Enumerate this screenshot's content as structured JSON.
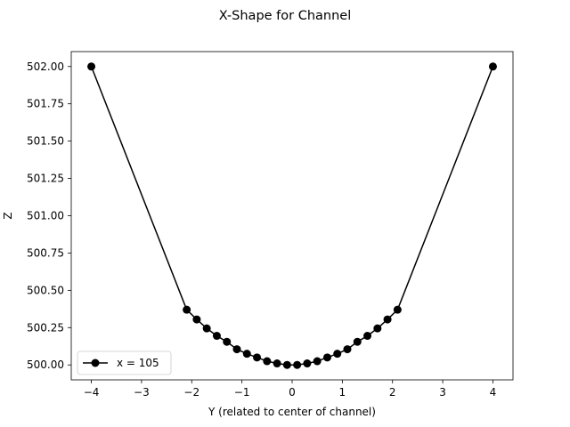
{
  "chart_data": {
    "type": "line",
    "title": "X-Shape for Channel",
    "xlabel": "Y (related to center of channel)",
    "ylabel": "Z",
    "xlim": [
      -4.4,
      4.4
    ],
    "ylim": [
      499.9,
      502.1
    ],
    "xticks": [
      -4,
      -3,
      -2,
      -1,
      0,
      1,
      2,
      3,
      4
    ],
    "xtick_labels": [
      "−4",
      "−3",
      "−2",
      "−1",
      "0",
      "1",
      "2",
      "3",
      "4"
    ],
    "yticks": [
      500.0,
      500.25,
      500.5,
      500.75,
      501.0,
      501.25,
      501.5,
      501.75,
      502.0
    ],
    "ytick_labels": [
      "500.00",
      "500.25",
      "500.50",
      "500.75",
      "501.00",
      "501.25",
      "501.50",
      "501.75",
      "502.00"
    ],
    "grid": false,
    "legend_position": "lower-left",
    "series": [
      {
        "name": "x = 105",
        "color": "#000000",
        "marker": "circle",
        "x": [
          -4.0,
          -2.1,
          -1.9,
          -1.7,
          -1.5,
          -1.3,
          -1.1,
          -0.9,
          -0.7,
          -0.5,
          -0.3,
          -0.1,
          0.1,
          0.3,
          0.5,
          0.7,
          0.9,
          1.1,
          1.3,
          1.5,
          1.7,
          1.9,
          2.1,
          4.0
        ],
        "y": [
          502.0,
          500.37,
          500.305,
          500.245,
          500.195,
          500.155,
          500.105,
          500.075,
          500.05,
          500.025,
          500.01,
          500.0,
          500.0,
          500.01,
          500.025,
          500.05,
          500.075,
          500.105,
          500.155,
          500.195,
          500.245,
          500.305,
          500.37,
          502.0
        ]
      }
    ]
  }
}
